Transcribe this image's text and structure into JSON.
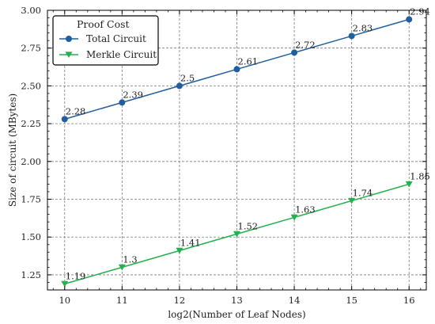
{
  "chart_data": {
    "type": "line",
    "title": "",
    "xlabel": "log2(Number of Leaf Nodes)",
    "ylabel": "Size of circuit (MBytes)",
    "x": [
      10,
      11,
      12,
      13,
      14,
      15,
      16
    ],
    "xlim": [
      9.7,
      16.3
    ],
    "ylim": [
      1.15,
      3.0
    ],
    "xticks": [
      10,
      11,
      12,
      13,
      14,
      15,
      16
    ],
    "yticks": [
      1.25,
      1.5,
      1.75,
      2.0,
      2.25,
      2.5,
      2.75,
      3.0
    ],
    "ytick_labels": [
      "1.25",
      "1.50",
      "1.75",
      "2.00",
      "2.25",
      "2.50",
      "2.75",
      "3.00"
    ],
    "grid": true,
    "legend_title": "Proof Cost",
    "legend_position": "upper-left",
    "series": [
      {
        "name": "Total Circuit",
        "values": [
          2.28,
          2.39,
          2.5,
          2.61,
          2.72,
          2.83,
          2.94
        ],
        "labels": [
          "2.28",
          "2.39",
          "2.5",
          "2.61",
          "2.72",
          "2.83",
          "2.94"
        ],
        "color": "#1f5fa0",
        "marker": "circle"
      },
      {
        "name": "Merkle Circuit",
        "values": [
          1.19,
          1.3,
          1.41,
          1.52,
          1.63,
          1.74,
          1.85
        ],
        "labels": [
          "1.19",
          "1.3",
          "1.41",
          "1.52",
          "1.63",
          "1.74",
          "1.85"
        ],
        "color": "#22b14c",
        "marker": "triangle-down"
      }
    ]
  }
}
